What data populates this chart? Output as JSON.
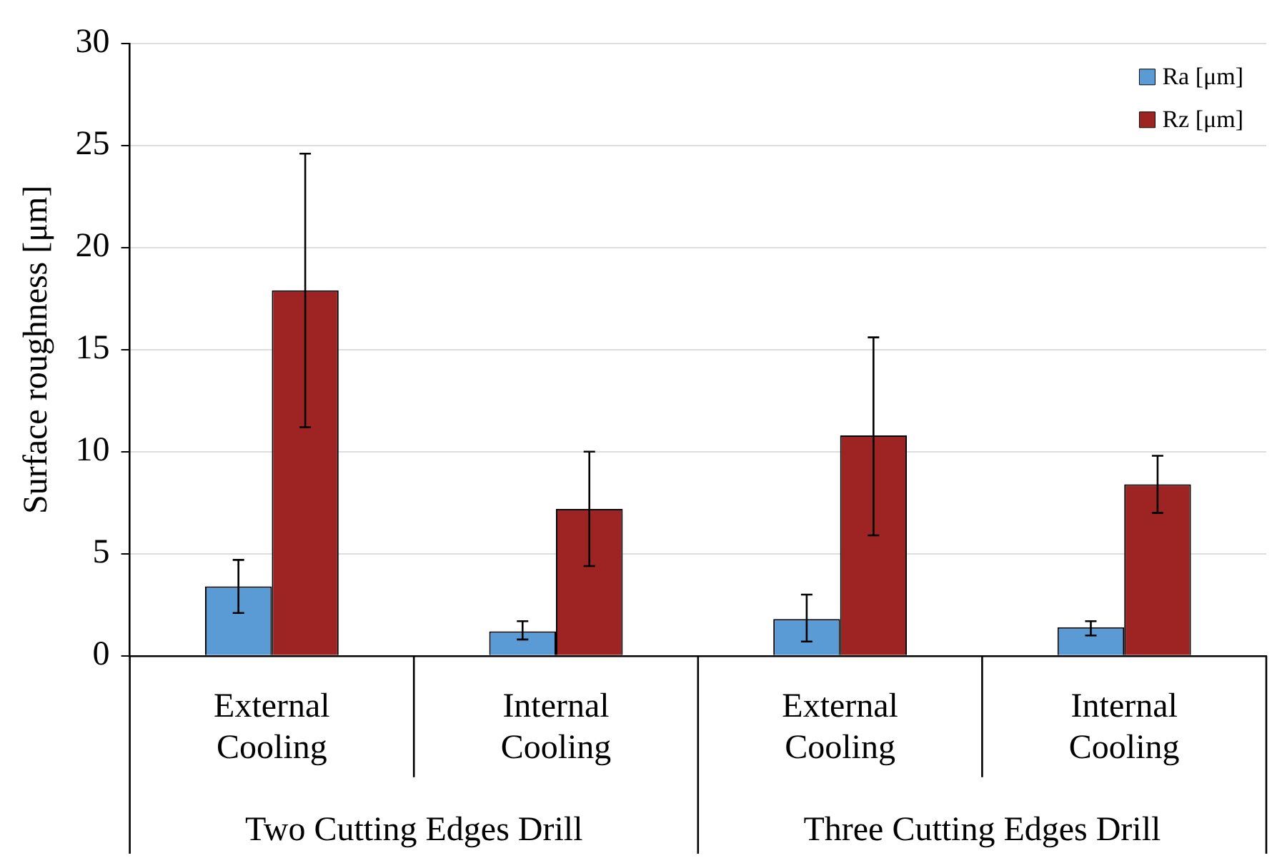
{
  "chart_data": {
    "type": "bar",
    "ylabel": "Surface roughness [μm]",
    "categories": [
      "External Cooling",
      "Internal Cooling",
      "External Cooling",
      "Internal Cooling"
    ],
    "series": [
      {
        "name": "Ra [μm]",
        "color": "#5b9bd5",
        "values": [
          3.4,
          1.2,
          1.8,
          1.4
        ],
        "errors": [
          [
            2.1,
            4.7
          ],
          [
            0.8,
            1.7
          ],
          [
            0.7,
            3.0
          ],
          [
            1.0,
            1.7
          ]
        ]
      },
      {
        "name": "Rz [μm]",
        "color": "#9e2424",
        "values": [
          17.9,
          7.2,
          10.8,
          8.4
        ],
        "errors": [
          [
            11.2,
            24.6
          ],
          [
            4.4,
            10.0
          ],
          [
            5.9,
            15.6
          ],
          [
            7.0,
            9.8
          ]
        ]
      }
    ],
    "annotations": [
      "Two Cutting Edges Drill",
      "Three Cutting Edges Drill"
    ],
    "ylim": [
      0,
      30
    ],
    "yticks": [
      0,
      5,
      10,
      15,
      20,
      25,
      30
    ],
    "grid": "y",
    "legend": "top right"
  }
}
